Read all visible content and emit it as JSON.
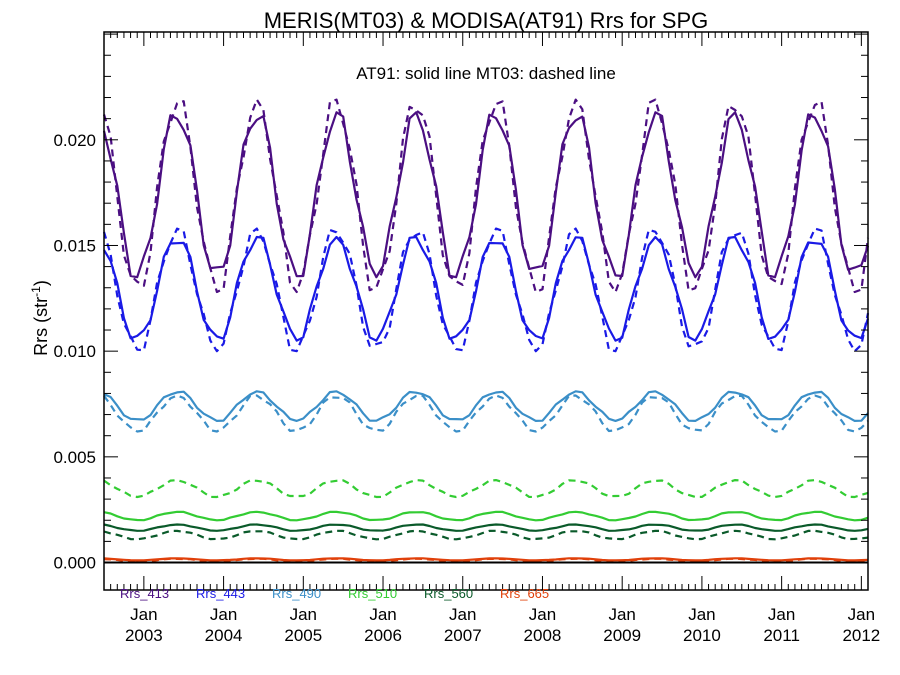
{
  "chart_data": {
    "type": "line",
    "title": "MERIS(MT03) & MODISA(AT91)  Rrs for SPG",
    "annotation": "AT91: solid line   MT03: dashed line",
    "ylabel": "Rrs (str",
    "ylabel_sup": "-1",
    "ylabel_close": ")",
    "ylim": [
      -0.0013,
      0.0251
    ],
    "yticks": [
      "0.000",
      "0.005",
      "0.010",
      "0.015",
      "0.020"
    ],
    "ytick_values": [
      0.0,
      0.005,
      0.01,
      0.015,
      0.02
    ],
    "xlim": [
      "2002-07",
      "2012-02"
    ],
    "x_tick_labels": [
      {
        "month": "Jan",
        "year": "2003"
      },
      {
        "month": "Jan",
        "year": "2004"
      },
      {
        "month": "Jan",
        "year": "2005"
      },
      {
        "month": "Jan",
        "year": "2006"
      },
      {
        "month": "Jan",
        "year": "2007"
      },
      {
        "month": "Jan",
        "year": "2008"
      },
      {
        "month": "Jan",
        "year": "2009"
      },
      {
        "month": "Jan",
        "year": "2010"
      },
      {
        "month": "Jan",
        "year": "2011"
      },
      {
        "month": "Jan",
        "year": "2012"
      }
    ],
    "x_tick_dates": [
      "2003-01",
      "2004-01",
      "2005-01",
      "2006-01",
      "2007-01",
      "2008-01",
      "2009-01",
      "2010-01",
      "2011-01",
      "2012-01"
    ],
    "legend_position": "bottom-left",
    "zero_line": true,
    "series_meta": [
      {
        "name": "Rrs_413",
        "color": "#4b0f82",
        "modis": {
          "min": 0.0135,
          "max": 0.0213
        },
        "meris": {
          "min": 0.0128,
          "max": 0.0219
        }
      },
      {
        "name": "Rrs_443",
        "color": "#1a1ae6",
        "modis": {
          "min": 0.0105,
          "max": 0.0154
        },
        "meris": {
          "min": 0.01,
          "max": 0.0158
        }
      },
      {
        "name": "Rrs_490",
        "color": "#3b8fc8",
        "modis": {
          "min": 0.0067,
          "max": 0.0081
        },
        "meris": {
          "min": 0.0062,
          "max": 0.0079
        }
      },
      {
        "name": "Rrs_510",
        "color": "#33cc33",
        "modis": {
          "min": 0.002,
          "max": 0.0024
        },
        "meris": {
          "min": 0.0031,
          "max": 0.0039
        }
      },
      {
        "name": "Rrs_560",
        "color": "#0a5a2a",
        "modis": {
          "min": 0.0015,
          "max": 0.0018
        },
        "meris": {
          "min": 0.0011,
          "max": 0.0015
        }
      },
      {
        "name": "Rrs_665",
        "color": "#e0400a",
        "modis": {
          "min": 0.0001,
          "max": 0.0002
        },
        "meris": {
          "min": 5e-05,
          "max": 0.00018
        }
      }
    ]
  }
}
